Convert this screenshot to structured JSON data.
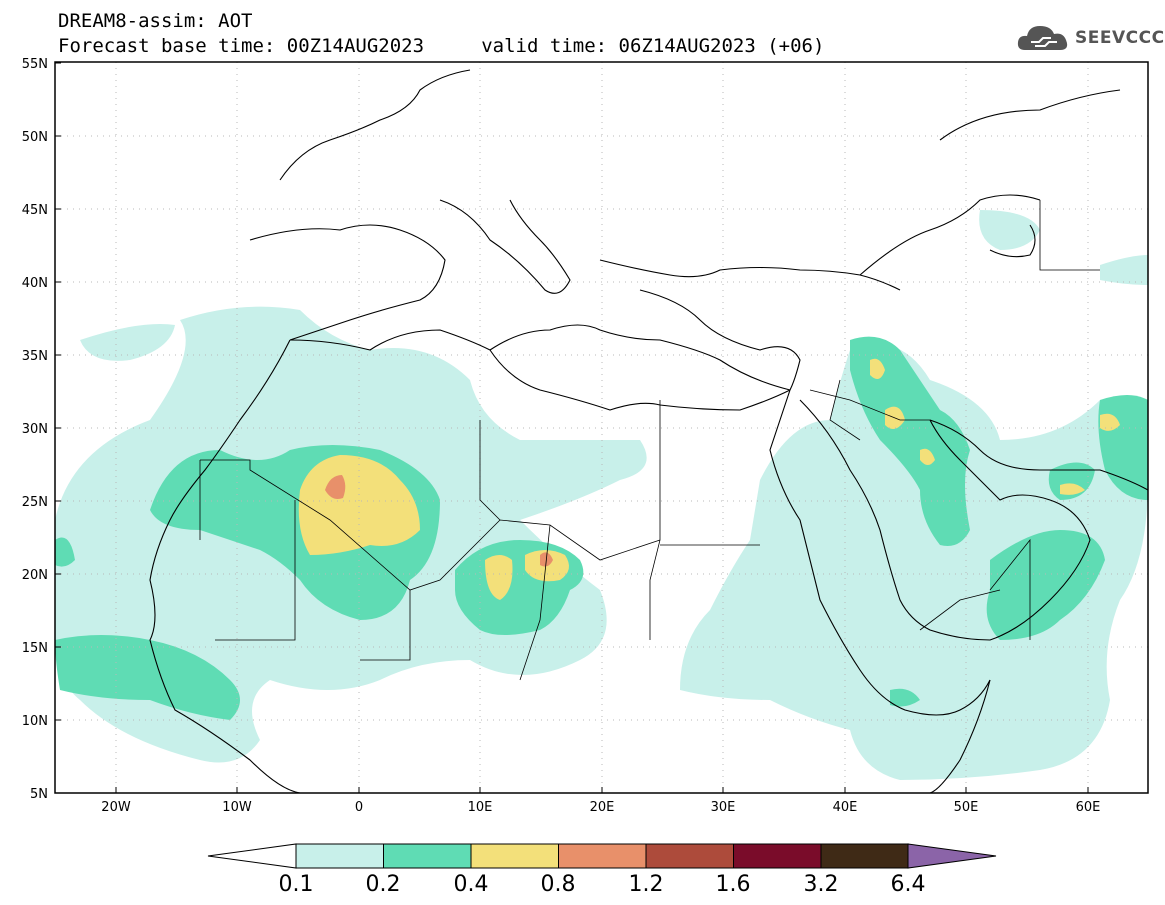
{
  "header": {
    "title": "DREAM8-assim: AOT",
    "subtitle": "Forecast base time: 00Z14AUG2023     valid time: 06Z14AUG2023 (+06)"
  },
  "logo": {
    "text": "SEEVCCC",
    "icon": "cloud-icon"
  },
  "axes": {
    "lat_labels": [
      "55N",
      "50N",
      "45N",
      "40N",
      "35N",
      "30N",
      "25N",
      "20N",
      "15N",
      "10N",
      "5N"
    ],
    "lon_labels": [
      "20W",
      "10W",
      "0",
      "10E",
      "20E",
      "30E",
      "40E",
      "50E",
      "60E"
    ]
  },
  "colorbar": {
    "labels": [
      "0.1",
      "0.2",
      "0.4",
      "0.8",
      "1.2",
      "1.6",
      "3.2",
      "6.4"
    ],
    "colors": [
      "#c8f0ea",
      "#5fdcb4",
      "#f3e07a",
      "#e8906a",
      "#ad4b3b",
      "#7a0c2a",
      "#3f2a16",
      "#8b64a8"
    ]
  }
}
